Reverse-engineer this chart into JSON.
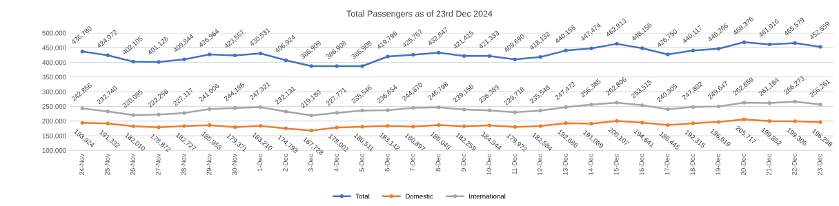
{
  "chart_data": {
    "type": "line",
    "title": "Total Passengers as of 23rd Dec 2024",
    "categories": [
      "24-Nov",
      "25-Nov",
      "26-Nov",
      "27-Nov",
      "28-Nov",
      "29-Nov",
      "30-Nov",
      "1-Dec",
      "2-Dec",
      "3-Dec",
      "4-Dec",
      "5-Dec",
      "6-Dec",
      "7-Dec",
      "8-Dec",
      "9-Dec",
      "10-Dec",
      "11-Dec",
      "12-Dec",
      "13-Dec",
      "14-Dec",
      "15-Dec",
      "16-Dec",
      "17-Dec",
      "18-Dec",
      "19-Dec",
      "20-Dec",
      "21-Dec",
      "22-Dec",
      "23-Dec"
    ],
    "series": [
      {
        "name": "Total",
        "color": "#4472c4",
        "values": [
          436780,
          424072,
          402105,
          401128,
          409844,
          426964,
          423557,
          430531,
          406924,
          386908,
          386908,
          386908,
          419796,
          425767,
          432847,
          421415,
          421333,
          409690,
          418132,
          440158,
          447474,
          462913,
          448156,
          426750,
          440117,
          446266,
          468376,
          461016,
          465579,
          452559
        ],
        "value_labels": [
          "436,780",
          "424,072",
          "402,105",
          "401,128",
          "409,844",
          "426,964",
          "423,557",
          "430,531",
          "406,924",
          "386,908",
          "386,908",
          "386,908",
          "419,796",
          "425,767",
          "432,847",
          "421,415",
          "421,333",
          "409,690",
          "418,132",
          "440,158",
          "447,474",
          "462,913",
          "448,156",
          "426,750",
          "440,117",
          "446,266",
          "468,376",
          "461,016",
          "465,579",
          "452,559"
        ]
      },
      {
        "name": "Domestic",
        "color": "#ed7d31",
        "values": [
          193924,
          191332,
          182010,
          178872,
          182727,
          185958,
          179371,
          183210,
          174793,
          167728,
          178001,
          180511,
          183142,
          180897,
          186049,
          182259,
          184944,
          179972,
          182584,
          192686,
          191089,
          200107,
          194641,
          186445,
          192315,
          196619,
          205717,
          199852,
          199306,
          196298
        ],
        "value_labels": [
          "193,924",
          "191,332",
          "182,010",
          "178,872",
          "182,727",
          "185,958",
          "179,371",
          "183,210",
          "174,793",
          "167,728",
          "178,001",
          "180,511",
          "183,142",
          "180,897",
          "186,049",
          "182,259",
          "184,944",
          "179,972",
          "182,584",
          "192,686",
          "191,089",
          "200,107",
          "194,641",
          "186,445",
          "192,315",
          "196,619",
          "205,717",
          "199,852",
          "199,306",
          "196,298"
        ]
      },
      {
        "name": "International",
        "color": "#a5a5a5",
        "values": [
          242856,
          232740,
          220095,
          222256,
          227117,
          241006,
          244186,
          247321,
          232131,
          219180,
          227771,
          235546,
          236654,
          244870,
          246798,
          239156,
          236389,
          229718,
          235548,
          247472,
          256385,
          262806,
          253515,
          240305,
          247802,
          249647,
          262659,
          261164,
          266273,
          256261
        ],
        "value_labels": [
          "242,856",
          "232,740",
          "220,095",
          "222,256",
          "227,117",
          "241,006",
          "244,186",
          "247,321",
          "232,131",
          "219,180",
          "227,771",
          "235,546",
          "236,654",
          "244,870",
          "246,798",
          "239,156",
          "236,389",
          "229,718",
          "235,548",
          "247,472",
          "256,385",
          "262,806",
          "253,515",
          "240,305",
          "247,802",
          "249,647",
          "262,659",
          "261,164",
          "266,273",
          "256,261"
        ]
      }
    ],
    "ylim": [
      100000,
      500000
    ],
    "yticks": [
      {
        "value": 100000,
        "label": "100,000"
      },
      {
        "value": 150000,
        "label": "150,000"
      },
      {
        "value": 200000,
        "label": "200,000"
      },
      {
        "value": 250000,
        "label": "250,000"
      },
      {
        "value": 300000,
        "label": "300,000"
      },
      {
        "value": 350000,
        "label": "350,000"
      },
      {
        "value": 400000,
        "label": "400,000"
      },
      {
        "value": 450000,
        "label": "450,000"
      },
      {
        "value": 500000,
        "label": "500,000"
      }
    ],
    "grid": "y",
    "legend": "bottom",
    "marker": "circle",
    "line_style": "solid"
  }
}
